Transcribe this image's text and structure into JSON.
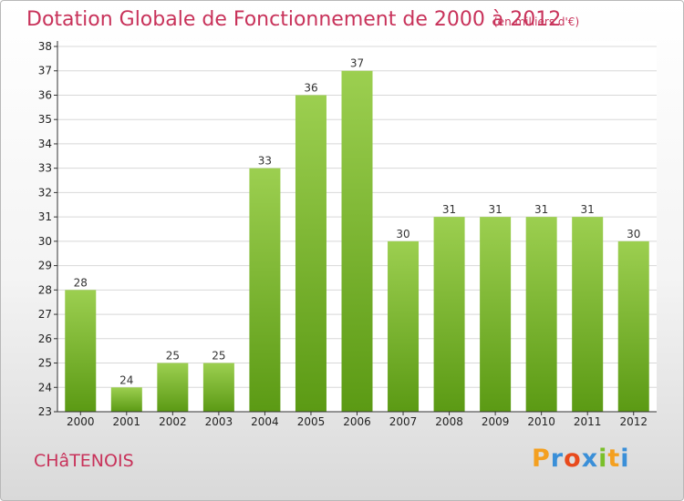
{
  "title": "Dotation Globale de Fonctionnement de 2000 à 2012",
  "subtitle": "(en milliers d'€)",
  "commune": "CHâTENOIS",
  "logo": {
    "letters": [
      "P",
      "r",
      "o",
      "x",
      "i",
      "t",
      "i"
    ],
    "colors": [
      "#f4a020",
      "#3a8fd8",
      "#e84a1c",
      "#3a8fd8",
      "#7abf2a",
      "#f4a020",
      "#3a8fd8"
    ]
  },
  "colors": {
    "bar_top": "#9ccf50",
    "bar_bottom": "#5b9a14",
    "title": "#c8325a"
  },
  "chart_data": {
    "type": "bar",
    "title": "Dotation Globale de Fonctionnement de 2000 à 2012",
    "subtitle": "(en milliers d'€)",
    "categories": [
      "2000",
      "2001",
      "2002",
      "2003",
      "2004",
      "2005",
      "2006",
      "2007",
      "2008",
      "2009",
      "2010",
      "2011",
      "2012"
    ],
    "values": [
      28,
      24,
      25,
      25,
      33,
      36,
      37,
      30,
      31,
      31,
      31,
      31,
      30
    ],
    "ylim": [
      23,
      38
    ],
    "yticks": [
      23,
      24,
      25,
      26,
      27,
      28,
      29,
      30,
      31,
      32,
      33,
      34,
      35,
      36,
      37,
      38
    ],
    "grid": true
  }
}
